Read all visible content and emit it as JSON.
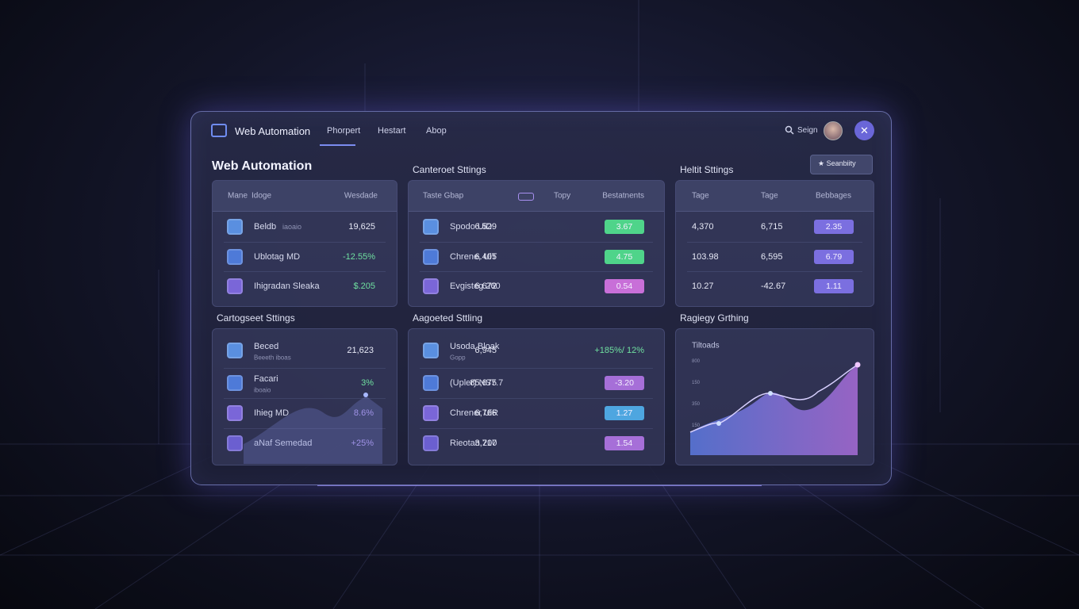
{
  "nav": {
    "brand": "Web Automation",
    "links": [
      "Phorpert",
      "Hestart",
      "Abop"
    ],
    "search": "Seign"
  },
  "action_button": "Seanbiity",
  "page_title": "Web Automation",
  "panels": [
    {
      "headers": [
        "Mane",
        "Idoge",
        "Wesdade"
      ],
      "rows": [
        {
          "name": "Beldb",
          "note": "iaoaio",
          "cells": [
            "19,625"
          ]
        },
        {
          "name": "Ublotag MD",
          "cells": [
            "-12.55%"
          ]
        },
        {
          "name": "Ihigradan Sleaka",
          "cells": [
            "$.205"
          ]
        }
      ]
    },
    {
      "title": "Canteroet Sttings",
      "headers": [
        "Taste Gbap",
        "Topy",
        "Bestatnents"
      ],
      "rows": [
        {
          "name": "Spodo UiD",
          "cells": [
            "6.529",
            "3.67"
          ]
        },
        {
          "name": "Chrene, UiT",
          "cells": [
            "6.405",
            "4.75"
          ]
        },
        {
          "name": "Evgisteg 260",
          "cells": [
            "6.672",
            "0.54"
          ]
        }
      ]
    },
    {
      "title": "Heltit Sttings",
      "headers": [
        "Tage",
        "Tage",
        "Bebbages"
      ],
      "rows": [
        {
          "cells": [
            "4,370",
            "6,715",
            "2.35"
          ]
        },
        {
          "cells": [
            "103.98",
            "6,595",
            "6.79"
          ]
        },
        {
          "cells": [
            "10.27",
            "-42.67",
            "1.11"
          ]
        }
      ]
    },
    {
      "title": "Cartogseet Sttings",
      "rows": [
        {
          "name": "Beced",
          "note": "Beeeth iboas",
          "cells": [
            "21,623"
          ]
        },
        {
          "name": "Facari",
          "note": "iboaio",
          "cells": [
            "3%"
          ]
        },
        {
          "name": "Ihieg MD",
          "cells": [
            "8.6%"
          ]
        },
        {
          "name": "aNaf Semedad",
          "cells": [
            "+25%"
          ]
        }
      ]
    },
    {
      "title": "Aagoeted Sttling",
      "rows": [
        {
          "name": "Usoda Bloak",
          "note": "Gopp",
          "cells": [
            "6,945",
            "+185%/ 12%"
          ]
        },
        {
          "name": "(Upler) NS7.7",
          "cells": [
            "85,675",
            "-3.20"
          ]
        },
        {
          "name": "Chrener UiR",
          "cells": [
            "6,766",
            "1.27"
          ]
        },
        {
          "name": "Rieotan 200",
          "cells": [
            "3,717",
            "1.54"
          ]
        }
      ]
    },
    {
      "title": "Ragiegy Grthing",
      "chart_label": "Tiltoads",
      "y_labels": [
        "800",
        "150",
        "350",
        "150"
      ]
    }
  ]
}
